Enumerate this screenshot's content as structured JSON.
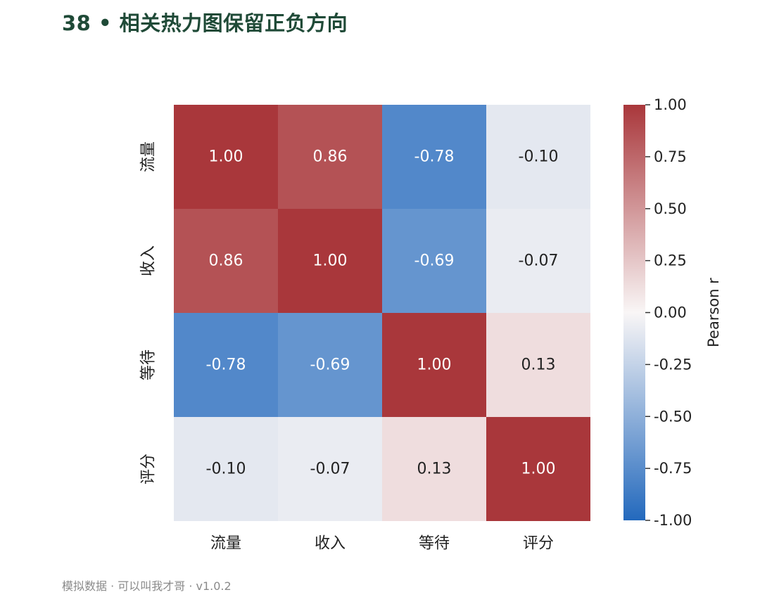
{
  "page": {
    "title": "38 • 相关热力图保留正负方向",
    "footer": "模拟数据 · 可以叫我才哥 · v1.0.2"
  },
  "chart_data": {
    "type": "heatmap",
    "rows": [
      "流量",
      "收入",
      "等待",
      "评分"
    ],
    "columns": [
      "流量",
      "收入",
      "等待",
      "评分"
    ],
    "values": [
      [
        1.0,
        0.86,
        -0.78,
        -0.1
      ],
      [
        0.86,
        1.0,
        -0.69,
        -0.07
      ],
      [
        -0.78,
        -0.69,
        1.0,
        0.13
      ],
      [
        -0.1,
        -0.07,
        0.13,
        1.0
      ]
    ],
    "value_format": "0.00",
    "colorbar": {
      "label": "Pearson r",
      "range": [
        -1.0,
        1.0
      ],
      "ticks": [
        1.0,
        0.75,
        0.5,
        0.25,
        0.0,
        -0.25,
        -0.5,
        -0.75,
        -1.0
      ],
      "tick_labels": [
        "1.00",
        "0.75",
        "0.50",
        "0.25",
        "0.00",
        "-0.25",
        "-0.50",
        "-0.75",
        "-1.00"
      ],
      "colormap": "vlag",
      "colors": {
        "low": "#2369bd",
        "mid": "#f9f6f6",
        "high": "#a9373b"
      }
    }
  }
}
